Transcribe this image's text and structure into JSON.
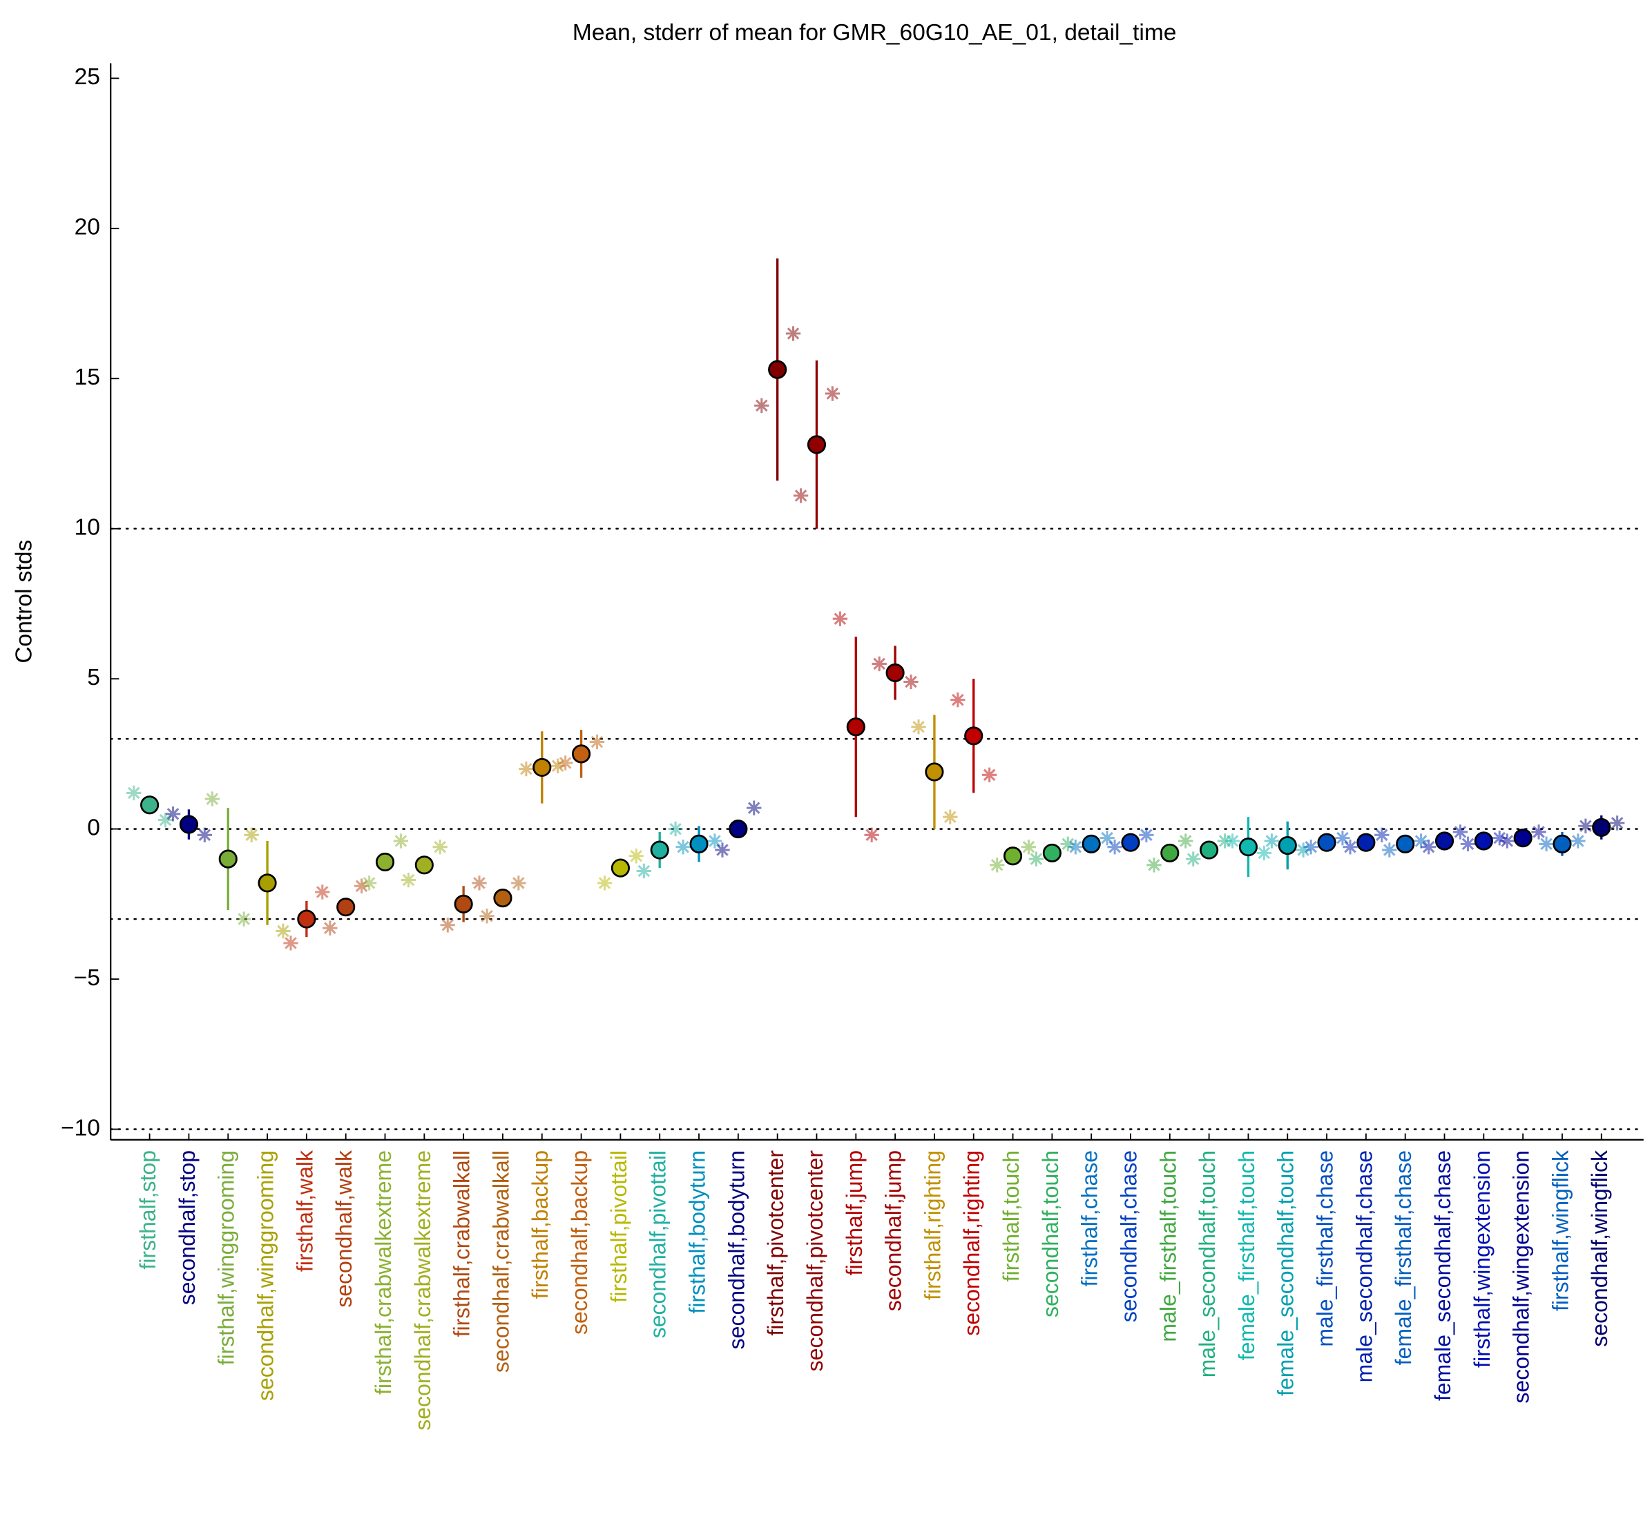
{
  "chart_data": {
    "type": "errorbar",
    "title": "Mean, stderr of mean for GMR_60G10_AE_01, detail_time",
    "y_label": "Control stds",
    "categories": [
      "firsthalf,stop",
      "secondhalf,stop",
      "firsthalf,winggrooming",
      "secondhalf,winggrooming",
      "firsthalf,walk",
      "secondhalf,walk",
      "firsthalf,crabwalkextreme",
      "secondhalf,crabwalkextreme",
      "firsthalf,crabwalkall",
      "secondhalf,crabwalkall",
      "firsthalf,backup",
      "secondhalf,backup",
      "firsthalf,pivottail",
      "secondhalf,pivottail",
      "firsthalf,bodyturn",
      "secondhalf,bodyturn",
      "firsthalf,pivotcenter",
      "secondhalf,pivotcenter",
      "firsthalf,jump",
      "secondhalf,jump",
      "firsthalf,righting",
      "secondhalf,righting",
      "firsthalf,touch",
      "secondhalf,touch",
      "firsthalf,chase",
      "secondhalf,chase",
      "male_firsthalf,touch",
      "male_secondhalf,touch",
      "female_firsthalf,touch",
      "female_secondhalf,touch",
      "male_firsthalf,chase",
      "male_secondhalf,chase",
      "female_firsthalf,chase",
      "female_secondhalf,chase",
      "firsthalf,wingextension",
      "secondhalf,wingextension",
      "firsthalf,wingflick",
      "secondhalf,wingflick"
    ],
    "values": [
      0.8,
      0.15,
      -1.0,
      -1.8,
      -3.0,
      -2.6,
      -1.1,
      -1.2,
      -2.5,
      -2.3,
      2.05,
      2.5,
      -1.3,
      -0.7,
      -0.5,
      0.0,
      15.3,
      12.8,
      3.4,
      5.2,
      1.9,
      3.1,
      -0.9,
      -0.8,
      -0.5,
      -0.45,
      -0.8,
      -0.7,
      -0.6,
      -0.55,
      -0.45,
      -0.45,
      -0.5,
      -0.4,
      -0.4,
      -0.3,
      -0.5,
      0.05
    ],
    "errors": [
      0.3,
      0.5,
      1.7,
      1.4,
      0.6,
      0.3,
      0.3,
      0.2,
      0.6,
      0.3,
      1.2,
      0.8,
      0.3,
      0.6,
      0.6,
      0.3,
      3.7,
      2.8,
      3.0,
      0.9,
      1.9,
      1.9,
      0.3,
      0.3,
      0.1,
      0.1,
      0.2,
      0.2,
      1.0,
      0.8,
      0.1,
      0.1,
      0.1,
      0.1,
      0.1,
      0.1,
      0.4,
      0.4
    ],
    "stars_first": [
      1.2,
      0.5,
      1.0,
      -0.2,
      -3.8,
      -3.3,
      -1.8,
      -1.7,
      -3.2,
      -2.9,
      2.0,
      2.2,
      -1.8,
      -1.4,
      -0.6,
      -0.7,
      14.1,
      11.1,
      7.0,
      5.5,
      3.4,
      4.3,
      -1.2,
      -1.0,
      -0.6,
      -0.6,
      -1.2,
      -1.0,
      -0.4,
      -0.4,
      -0.6,
      -0.6,
      -0.7,
      -0.6,
      -0.5,
      -0.4,
      -0.5,
      0.1
    ],
    "stars_second": [
      0.3,
      -0.2,
      -3.0,
      -3.4,
      -2.1,
      -1.9,
      -0.4,
      -0.6,
      -1.8,
      -1.8,
      2.1,
      2.9,
      -0.9,
      0.0,
      -0.4,
      0.7,
      16.5,
      14.5,
      -0.2,
      4.9,
      0.4,
      1.8,
      -0.6,
      -0.5,
      -0.3,
      -0.2,
      -0.4,
      -0.4,
      -0.8,
      -0.7,
      -0.3,
      -0.2,
      -0.4,
      -0.1,
      -0.3,
      -0.1,
      -0.4,
      0.2
    ],
    "colors": [
      "#3cb38a",
      "#000080",
      "#7aac3a",
      "#a8a000",
      "#c03010",
      "#b34010",
      "#8cb030",
      "#a0b020",
      "#b04a10",
      "#b06010",
      "#c08000",
      "#c06010",
      "#b8b800",
      "#20b0a0",
      "#0090c0",
      "#000080",
      "#800000",
      "#900000",
      "#b00000",
      "#a00000",
      "#c09000",
      "#c00000",
      "#70b030",
      "#30b060",
      "#0070c0",
      "#0040c0",
      "#40a840",
      "#20b080",
      "#10b8b0",
      "#00a0b0",
      "#0050c0",
      "#0020b0",
      "#0060c0",
      "#0010a0",
      "#0010b0",
      "#000090",
      "#0060c0",
      "#000070"
    ],
    "ylim": [
      -10.35,
      25.5
    ],
    "yticks": [
      {
        "value": -10,
        "label": "−10"
      },
      {
        "value": -5,
        "label": "−5"
      },
      0,
      5,
      10,
      15,
      20,
      25
    ],
    "hlines": [
      -10,
      -3,
      0,
      3,
      10
    ]
  }
}
